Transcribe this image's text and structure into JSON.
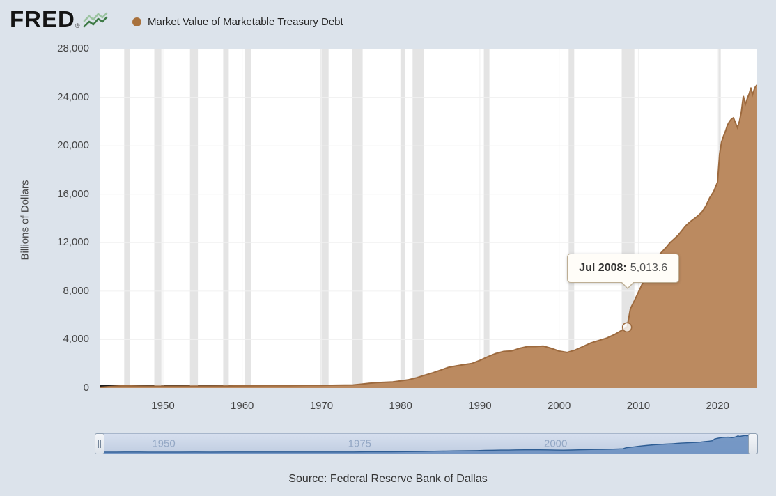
{
  "header": {
    "brand": "FRED",
    "brand_reg": "®",
    "series_label": "Market Value of Marketable Treasury Debt"
  },
  "colors": {
    "page_bg": "#dce3eb",
    "plot_bg": "#ffffff",
    "recession_band": "#e4e4e4",
    "gridline": "#f0f0f0",
    "area_fill": "#bb8a60",
    "area_line": "#9d6a3e",
    "legend_dot": "#a8713c",
    "tick_text": "#444444",
    "tooltip_bg": "#fffdf8",
    "tooltip_border": "#bdae94",
    "slider_track_bg": "#c0cde1",
    "slider_area_fill": "#6b90c1",
    "slider_area_line": "#2e5d94",
    "slider_label": "#93a7c4",
    "logo_line_dark": "#3e7a46",
    "logo_line_light": "#9bc4a0"
  },
  "chart_data": {
    "type": "area",
    "title": "Market Value of Marketable Treasury Debt",
    "ylabel": "Billions of Dollars",
    "xlabel": "",
    "x_range": [
      1942,
      2025
    ],
    "ylim": [
      0,
      28000
    ],
    "grid": "on",
    "legend_position": "top-left",
    "y_tick_values": [
      0,
      4000,
      8000,
      12000,
      16000,
      20000,
      24000,
      28000
    ],
    "y_tick_labels": [
      "0",
      "4,000",
      "8,000",
      "12,000",
      "16,000",
      "20,000",
      "24,000",
      "28,000"
    ],
    "x_tick_years": [
      1950,
      1960,
      1970,
      1980,
      1990,
      2000,
      2010,
      2020
    ],
    "x": [
      1942,
      1943,
      1944,
      1945,
      1946,
      1947,
      1948,
      1949,
      1950,
      1952,
      1954,
      1956,
      1958,
      1960,
      1962,
      1964,
      1966,
      1968,
      1970,
      1972,
      1974,
      1975,
      1976,
      1977,
      1978,
      1979,
      1980,
      1981,
      1982,
      1983,
      1984,
      1985,
      1986,
      1987,
      1988,
      1989,
      1990,
      1991,
      1992,
      1993,
      1994,
      1995,
      1996,
      1997,
      1998,
      1999,
      2000,
      2001,
      2002,
      2003,
      2004,
      2005,
      2006,
      2007,
      2008,
      2008.58,
      2009,
      2009.5,
      2010,
      2010.5,
      2011,
      2011.5,
      2012,
      2012.5,
      2013,
      2013.5,
      2014,
      2014.5,
      2015,
      2015.5,
      2016,
      2016.5,
      2017,
      2017.5,
      2018,
      2018.5,
      2019,
      2019.5,
      2020,
      2020.25,
      2020.5,
      2020.75,
      2021,
      2021.25,
      2021.5,
      2021.75,
      2022,
      2022.25,
      2022.5,
      2022.75,
      2023,
      2023.25,
      2023.5,
      2023.75,
      2024,
      2024.2,
      2024.4,
      2024.6,
      2024.8,
      2025
    ],
    "values": [
      60,
      110,
      150,
      185,
      175,
      160,
      150,
      152,
      152,
      150,
      158,
      155,
      166,
      178,
      188,
      196,
      196,
      210,
      212,
      235,
      252,
      315,
      392,
      443,
      472,
      505,
      594,
      683,
      848,
      1050,
      1247,
      1470,
      1700,
      1830,
      1930,
      2030,
      2280,
      2590,
      2850,
      3020,
      3060,
      3280,
      3420,
      3420,
      3460,
      3280,
      3050,
      2940,
      3130,
      3420,
      3720,
      3920,
      4120,
      4420,
      4800,
      5013.6,
      6550,
      7200,
      7900,
      8600,
      9300,
      9900,
      10450,
      10900,
      11250,
      11600,
      12000,
      12300,
      12600,
      13000,
      13400,
      13700,
      13950,
      14200,
      14500,
      15000,
      15700,
      16200,
      17000,
      19300,
      20300,
      20800,
      21200,
      21700,
      22000,
      22200,
      22300,
      21900,
      21500,
      22000,
      22800,
      24100,
      23400,
      23900,
      24300,
      24800,
      24200,
      24600,
      24900,
      25000
    ],
    "recessions": [
      [
        1945.1,
        1945.8
      ],
      [
        1948.9,
        1949.8
      ],
      [
        1953.4,
        1954.4
      ],
      [
        1957.6,
        1958.3
      ],
      [
        1960.3,
        1961.1
      ],
      [
        1969.9,
        1970.9
      ],
      [
        1973.9,
        1975.2
      ],
      [
        1980.0,
        1980.6
      ],
      [
        1981.5,
        1982.9
      ],
      [
        1990.5,
        1991.2
      ],
      [
        2001.2,
        2001.9
      ],
      [
        2007.9,
        2009.5
      ],
      [
        2020.1,
        2020.4
      ]
    ],
    "tooltip": {
      "label": "Jul 2008:",
      "value": "5,013.6",
      "x": 2008.58,
      "y": 5013.6
    }
  },
  "slider": {
    "labels": [
      {
        "text": "1950",
        "year": 1950
      },
      {
        "text": "1975",
        "year": 1975
      },
      {
        "text": "2000",
        "year": 2000
      }
    ]
  },
  "footer": {
    "source": "Source: Federal Reserve Bank of Dallas"
  }
}
